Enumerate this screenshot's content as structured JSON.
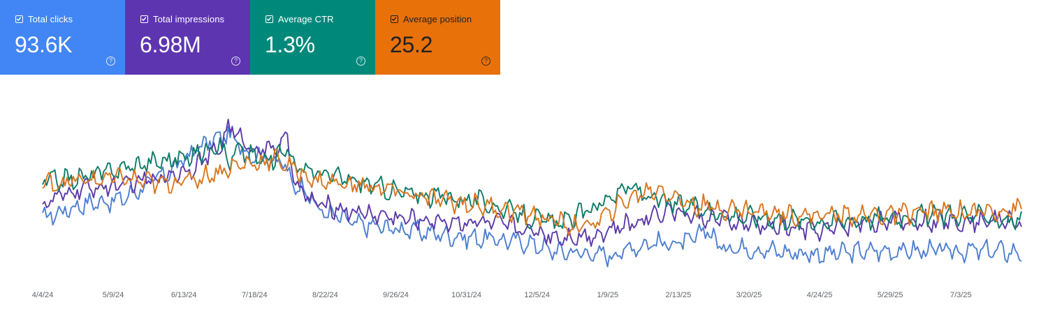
{
  "metrics": [
    {
      "label": "Total clicks",
      "value": "93.6K",
      "color": "#4285f4",
      "text_color": "#ffffff",
      "checked": true
    },
    {
      "label": "Total impressions",
      "value": "6.98M",
      "color": "#5e35b1",
      "text_color": "#ffffff",
      "checked": true
    },
    {
      "label": "Average CTR",
      "value": "1.3%",
      "color": "#00897b",
      "text_color": "#ffffff",
      "checked": true
    },
    {
      "label": "Average position",
      "value": "25.2",
      "color": "#e8710a",
      "text_color": "#202124",
      "checked": true
    }
  ],
  "help_icon": "?",
  "chart_data": {
    "type": "line",
    "x_ticks": [
      "4/4/24",
      "5/9/24",
      "6/13/24",
      "7/18/24",
      "8/22/24",
      "9/26/24",
      "10/31/24",
      "12/5/24",
      "1/9/25",
      "2/13/25",
      "3/20/25",
      "4/24/25",
      "5/29/25",
      "7/3/25"
    ],
    "grid": false,
    "y_axis_labels_visible": false,
    "series": [
      {
        "name": "Total clicks",
        "color": "#4e7fd0",
        "anchors": [
          [
            0,
            0.36
          ],
          [
            0.04,
            0.45
          ],
          [
            0.08,
            0.48
          ],
          [
            0.13,
            0.66
          ],
          [
            0.16,
            0.82
          ],
          [
            0.19,
            0.9
          ],
          [
            0.21,
            0.78
          ],
          [
            0.245,
            0.72
          ],
          [
            0.255,
            0.58
          ],
          [
            0.27,
            0.55
          ],
          [
            0.28,
            0.42
          ],
          [
            0.32,
            0.32
          ],
          [
            0.38,
            0.28
          ],
          [
            0.43,
            0.24
          ],
          [
            0.47,
            0.22
          ],
          [
            0.5,
            0.2
          ],
          [
            0.52,
            0.15
          ],
          [
            0.55,
            0.14
          ],
          [
            0.58,
            0.12
          ],
          [
            0.6,
            0.17
          ],
          [
            0.62,
            0.2
          ],
          [
            0.64,
            0.2
          ],
          [
            0.66,
            0.2
          ],
          [
            0.68,
            0.3
          ],
          [
            0.69,
            0.18
          ],
          [
            0.72,
            0.17
          ],
          [
            0.76,
            0.14
          ],
          [
            0.8,
            0.13
          ],
          [
            0.85,
            0.15
          ],
          [
            0.89,
            0.15
          ],
          [
            0.93,
            0.15
          ],
          [
            0.97,
            0.15
          ],
          [
            1,
            0.14
          ]
        ]
      },
      {
        "name": "Total impressions",
        "color": "#5b3aa8",
        "anchors": [
          [
            0,
            0.45
          ],
          [
            0.04,
            0.55
          ],
          [
            0.08,
            0.57
          ],
          [
            0.12,
            0.62
          ],
          [
            0.15,
            0.68
          ],
          [
            0.18,
            0.8
          ],
          [
            0.19,
            0.95
          ],
          [
            0.21,
            0.82
          ],
          [
            0.23,
            0.8
          ],
          [
            0.25,
            0.85
          ],
          [
            0.26,
            0.55
          ],
          [
            0.28,
            0.45
          ],
          [
            0.32,
            0.4
          ],
          [
            0.38,
            0.35
          ],
          [
            0.43,
            0.34
          ],
          [
            0.47,
            0.32
          ],
          [
            0.5,
            0.28
          ],
          [
            0.53,
            0.24
          ],
          [
            0.56,
            0.25
          ],
          [
            0.6,
            0.32
          ],
          [
            0.62,
            0.38
          ],
          [
            0.64,
            0.42
          ],
          [
            0.66,
            0.38
          ],
          [
            0.69,
            0.35
          ],
          [
            0.72,
            0.32
          ],
          [
            0.76,
            0.3
          ],
          [
            0.8,
            0.28
          ],
          [
            0.84,
            0.34
          ],
          [
            0.88,
            0.34
          ],
          [
            0.92,
            0.34
          ],
          [
            0.96,
            0.35
          ],
          [
            1,
            0.34
          ]
        ]
      },
      {
        "name": "Average CTR",
        "color": "#0f7b68",
        "anchors": [
          [
            0,
            0.6
          ],
          [
            0.04,
            0.62
          ],
          [
            0.08,
            0.68
          ],
          [
            0.11,
            0.72
          ],
          [
            0.15,
            0.75
          ],
          [
            0.18,
            0.85
          ],
          [
            0.19,
            0.72
          ],
          [
            0.2,
            0.8
          ],
          [
            0.23,
            0.72
          ],
          [
            0.25,
            0.82
          ],
          [
            0.26,
            0.68
          ],
          [
            0.28,
            0.66
          ],
          [
            0.3,
            0.62
          ],
          [
            0.32,
            0.6
          ],
          [
            0.35,
            0.55
          ],
          [
            0.37,
            0.52
          ],
          [
            0.4,
            0.5
          ],
          [
            0.44,
            0.48
          ],
          [
            0.47,
            0.42
          ],
          [
            0.5,
            0.36
          ],
          [
            0.53,
            0.32
          ],
          [
            0.56,
            0.42
          ],
          [
            0.58,
            0.5
          ],
          [
            0.6,
            0.56
          ],
          [
            0.62,
            0.5
          ],
          [
            0.64,
            0.45
          ],
          [
            0.66,
            0.44
          ],
          [
            0.7,
            0.38
          ],
          [
            0.75,
            0.36
          ],
          [
            0.8,
            0.34
          ],
          [
            0.85,
            0.36
          ],
          [
            0.9,
            0.38
          ],
          [
            0.95,
            0.38
          ],
          [
            1,
            0.34
          ]
        ]
      },
      {
        "name": "Average position",
        "color": "#d9761f",
        "anchors": [
          [
            0,
            0.58
          ],
          [
            0.04,
            0.6
          ],
          [
            0.08,
            0.62
          ],
          [
            0.12,
            0.58
          ],
          [
            0.16,
            0.62
          ],
          [
            0.2,
            0.7
          ],
          [
            0.22,
            0.72
          ],
          [
            0.24,
            0.74
          ],
          [
            0.26,
            0.66
          ],
          [
            0.28,
            0.6
          ],
          [
            0.31,
            0.58
          ],
          [
            0.34,
            0.56
          ],
          [
            0.37,
            0.52
          ],
          [
            0.4,
            0.48
          ],
          [
            0.44,
            0.45
          ],
          [
            0.47,
            0.42
          ],
          [
            0.5,
            0.38
          ],
          [
            0.53,
            0.33
          ],
          [
            0.55,
            0.3
          ],
          [
            0.57,
            0.35
          ],
          [
            0.59,
            0.45
          ],
          [
            0.61,
            0.52
          ],
          [
            0.63,
            0.55
          ],
          [
            0.65,
            0.48
          ],
          [
            0.67,
            0.44
          ],
          [
            0.7,
            0.42
          ],
          [
            0.74,
            0.4
          ],
          [
            0.78,
            0.38
          ],
          [
            0.82,
            0.38
          ],
          [
            0.86,
            0.38
          ],
          [
            0.9,
            0.4
          ],
          [
            0.95,
            0.4
          ],
          [
            1,
            0.42
          ]
        ]
      }
    ]
  }
}
